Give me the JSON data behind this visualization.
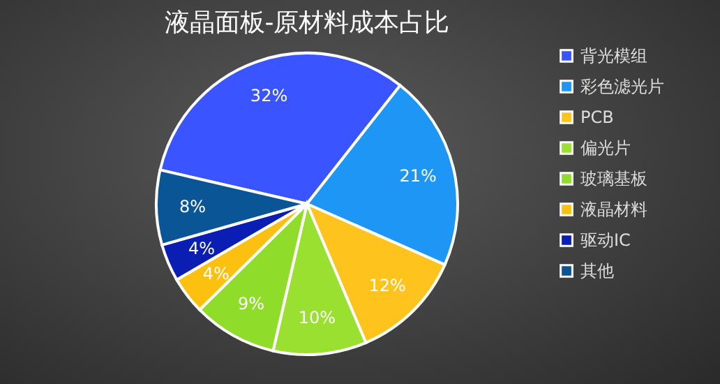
{
  "chart_data": {
    "type": "pie",
    "title": "液晶面板-原材料成本占比",
    "categories": [
      "背光模组",
      "彩色滤光片",
      "PCB",
      "偏光片",
      "玻璃基板",
      "液晶材料",
      "驱动IC",
      "其他"
    ],
    "values": [
      32,
      21,
      12,
      10,
      9,
      4,
      4,
      8
    ],
    "value_labels": [
      "32%",
      "21%",
      "12%",
      "10%",
      "9%",
      "4%",
      "4%",
      "8%"
    ],
    "colors": [
      "#3a55ff",
      "#1e96f5",
      "#ffc31e",
      "#99e030",
      "#8fdc2a",
      "#fcc010",
      "#0a1eb4",
      "#0a5596"
    ],
    "legend": "right"
  }
}
